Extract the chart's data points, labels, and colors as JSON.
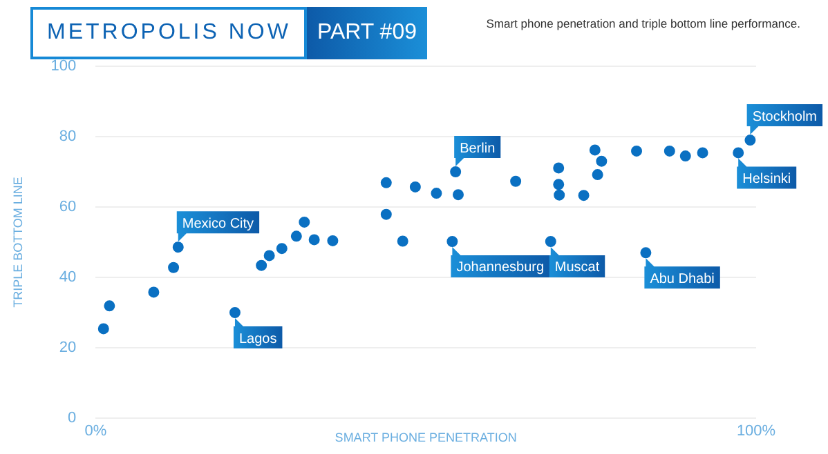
{
  "chart_data": {
    "type": "scatter",
    "title": "METROPOLIS NOW",
    "subtitle": "PART #09",
    "annotations": [
      "Smart phone penetration and triple bottom line performance.",
      {
        "text": "Mexico City",
        "x": 12.5,
        "y": 48.6
      },
      {
        "text": "Lagos",
        "x": 21.1,
        "y": 30.0
      },
      {
        "text": "Berlin",
        "x": 54.5,
        "y": 70.0
      },
      {
        "text": "Johannesburg",
        "x": 54.0,
        "y": 50.2
      },
      {
        "text": "Muscat",
        "x": 68.9,
        "y": 50.2
      },
      {
        "text": "Abu Dhabi",
        "x": 83.3,
        "y": 47.0
      },
      {
        "text": "Helsinki",
        "x": 97.3,
        "y": 75.4
      },
      {
        "text": "Stockholm",
        "x": 99.1,
        "y": 79.0
      }
    ],
    "xlabel": "SMART PHONE PENETRATION",
    "ylabel": "TRIPLE BOTTOM LINE",
    "x": [
      1.2,
      2.1,
      8.8,
      11.8,
      12.5,
      21.1,
      25.1,
      26.3,
      28.2,
      30.4,
      31.6,
      33.1,
      35.9,
      44.0,
      44.0,
      46.5,
      48.4,
      51.6,
      54.5,
      54.9,
      54.0,
      63.6,
      70.1,
      70.1,
      70.2,
      68.9,
      73.9,
      75.6,
      76.6,
      76.0,
      81.9,
      83.3,
      86.9,
      89.3,
      91.9,
      97.3,
      99.1
    ],
    "values": [
      25.4,
      31.9,
      35.8,
      42.8,
      48.6,
      30.0,
      43.4,
      46.2,
      48.2,
      51.7,
      55.7,
      50.7,
      50.4,
      66.9,
      57.9,
      50.3,
      65.7,
      63.9,
      70.0,
      63.5,
      50.2,
      67.3,
      71.1,
      66.4,
      63.4,
      50.2,
      63.3,
      76.2,
      73.0,
      69.2,
      75.9,
      47.0,
      75.9,
      74.5,
      75.4,
      75.4,
      79.0
    ],
    "color": "#0a70c2",
    "marker": "circle",
    "xlim": [
      0,
      100
    ],
    "xticks": [
      {
        "value": 0,
        "label": "0%"
      },
      {
        "value": 100,
        "label": "100%"
      }
    ],
    "ylim": [
      0,
      100
    ],
    "yticks": [
      0,
      20,
      40,
      60,
      80,
      100
    ],
    "grid": "y"
  }
}
